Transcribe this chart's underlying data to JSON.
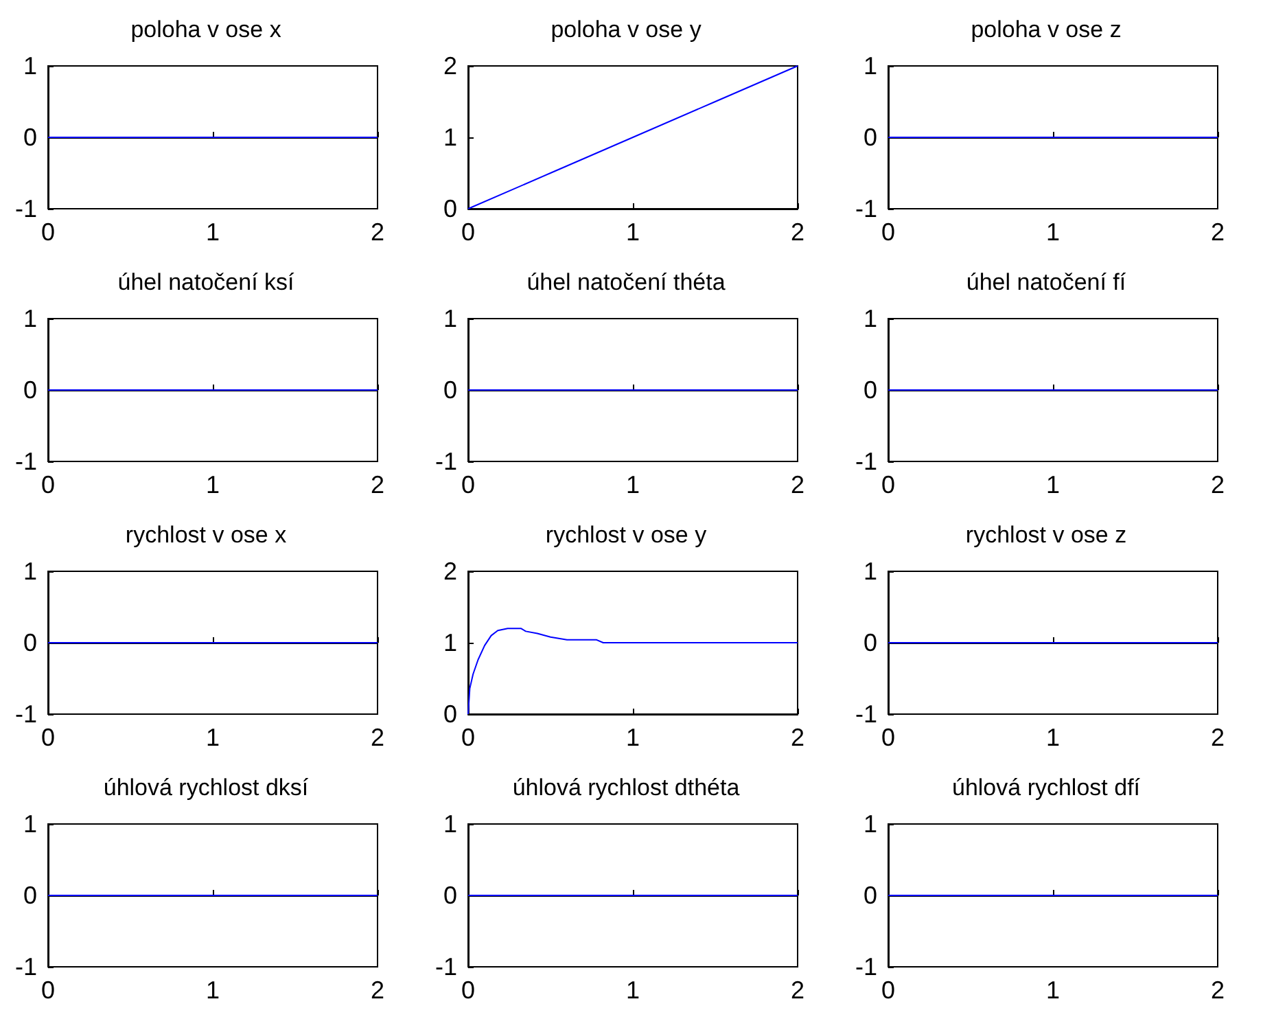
{
  "chart_data": [
    {
      "type": "line",
      "title": "poloha v ose x",
      "x": [
        0,
        2
      ],
      "values": [
        0,
        0
      ],
      "color": "#0000ff",
      "xlim": [
        0,
        2
      ],
      "ylim": [
        -1,
        1
      ],
      "xticks": [
        0,
        1,
        2
      ],
      "yticks": [
        -1,
        0,
        1
      ]
    },
    {
      "type": "line",
      "title": "poloha v ose y",
      "x": [
        0,
        0.5,
        1,
        1.5,
        2
      ],
      "values": [
        0,
        0.5,
        1,
        1.5,
        2
      ],
      "color": "#0000ff",
      "xlim": [
        0,
        2
      ],
      "ylim": [
        0,
        2
      ],
      "xticks": [
        0,
        1,
        2
      ],
      "yticks": [
        0,
        1,
        2
      ]
    },
    {
      "type": "line",
      "title": "poloha v ose z",
      "x": [
        0,
        2
      ],
      "values": [
        0,
        0
      ],
      "color": "#0000ff",
      "xlim": [
        0,
        2
      ],
      "ylim": [
        -1,
        1
      ],
      "xticks": [
        0,
        1,
        2
      ],
      "yticks": [
        -1,
        0,
        1
      ]
    },
    {
      "type": "line",
      "title": "úhel natočení ksí",
      "x": [
        0,
        2
      ],
      "values": [
        0,
        0
      ],
      "color": "#0000ff",
      "xlim": [
        0,
        2
      ],
      "ylim": [
        -1,
        1
      ],
      "xticks": [
        0,
        1,
        2
      ],
      "yticks": [
        -1,
        0,
        1
      ]
    },
    {
      "type": "line",
      "title": "úhel natočení théta",
      "x": [
        0,
        2
      ],
      "values": [
        0,
        0
      ],
      "color": "#0000ff",
      "xlim": [
        0,
        2
      ],
      "ylim": [
        -1,
        1
      ],
      "xticks": [
        0,
        1,
        2
      ],
      "yticks": [
        -1,
        0,
        1
      ]
    },
    {
      "type": "line",
      "title": "úhel natočení fí",
      "x": [
        0,
        2
      ],
      "values": [
        0,
        0
      ],
      "color": "#0000ff",
      "xlim": [
        0,
        2
      ],
      "ylim": [
        -1,
        1
      ],
      "xticks": [
        0,
        1,
        2
      ],
      "yticks": [
        -1,
        0,
        1
      ]
    },
    {
      "type": "line",
      "title": "rychlost v ose x",
      "x": [
        0,
        2
      ],
      "values": [
        0,
        0
      ],
      "color": "#0000ff",
      "xlim": [
        0,
        2
      ],
      "ylim": [
        -1,
        1
      ],
      "xticks": [
        0,
        1,
        2
      ],
      "yticks": [
        -1,
        0,
        1
      ]
    },
    {
      "type": "line",
      "title": "rychlost v ose y",
      "x": [
        0,
        0.01,
        0.03,
        0.06,
        0.1,
        0.14,
        0.18,
        0.24,
        0.32,
        0.35,
        0.42,
        0.5,
        0.6,
        0.78,
        0.82,
        2
      ],
      "values": [
        0,
        0.36,
        0.56,
        0.76,
        0.96,
        1.1,
        1.17,
        1.2,
        1.2,
        1.16,
        1.13,
        1.08,
        1.04,
        1.04,
        1,
        1
      ],
      "color": "#0000ff",
      "xlim": [
        0,
        2
      ],
      "ylim": [
        0,
        2
      ],
      "xticks": [
        0,
        1,
        2
      ],
      "yticks": [
        0,
        1,
        2
      ]
    },
    {
      "type": "line",
      "title": "rychlost v ose z",
      "x": [
        0,
        2
      ],
      "values": [
        0,
        0
      ],
      "color": "#0000ff",
      "xlim": [
        0,
        2
      ],
      "ylim": [
        -1,
        1
      ],
      "xticks": [
        0,
        1,
        2
      ],
      "yticks": [
        -1,
        0,
        1
      ]
    },
    {
      "type": "line",
      "title": "úhlová rychlost dksí",
      "x": [
        0,
        2
      ],
      "values": [
        0,
        0
      ],
      "color": "#0000ff",
      "xlim": [
        0,
        2
      ],
      "ylim": [
        -1,
        1
      ],
      "xticks": [
        0,
        1,
        2
      ],
      "yticks": [
        -1,
        0,
        1
      ]
    },
    {
      "type": "line",
      "title": "úhlová rychlost dthéta",
      "x": [
        0,
        2
      ],
      "values": [
        0,
        0
      ],
      "color": "#0000ff",
      "xlim": [
        0,
        2
      ],
      "ylim": [
        -1,
        1
      ],
      "xticks": [
        0,
        1,
        2
      ],
      "yticks": [
        -1,
        0,
        1
      ]
    },
    {
      "type": "line",
      "title": "úhlová rychlost dfí",
      "x": [
        0,
        2
      ],
      "values": [
        0,
        0
      ],
      "color": "#0000ff",
      "xlim": [
        0,
        2
      ],
      "ylim": [
        -1,
        1
      ],
      "xticks": [
        0,
        1,
        2
      ],
      "yticks": [
        -1,
        0,
        1
      ]
    }
  ]
}
